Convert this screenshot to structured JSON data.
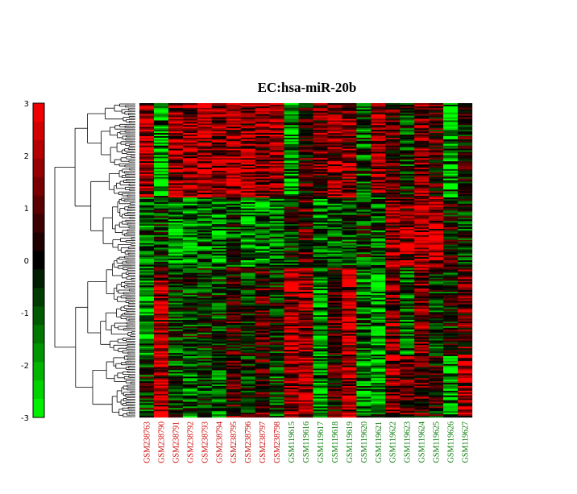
{
  "chart_data": {
    "type": "heatmap",
    "title": "EC:hsa-miR-20b",
    "colorbar": {
      "ticks": [
        "3",
        "2",
        "1",
        "0",
        "-1",
        "-2",
        "-3"
      ],
      "range": [
        -3,
        3
      ],
      "colors": {
        "high": "#ff0000",
        "mid": "#000000",
        "low": "#00ff00"
      }
    },
    "columns": [
      {
        "label": "GSM238763",
        "group_color": "#cc0000"
      },
      {
        "label": "GSM238790",
        "group_color": "#cc0000"
      },
      {
        "label": "GSM238791",
        "group_color": "#cc0000"
      },
      {
        "label": "GSM238792",
        "group_color": "#cc0000"
      },
      {
        "label": "GSM238793",
        "group_color": "#cc0000"
      },
      {
        "label": "GSM238794",
        "group_color": "#cc0000"
      },
      {
        "label": "GSM238795",
        "group_color": "#cc0000"
      },
      {
        "label": "GSM238796",
        "group_color": "#cc0000"
      },
      {
        "label": "GSM238797",
        "group_color": "#cc0000"
      },
      {
        "label": "GSM238798",
        "group_color": "#cc0000"
      },
      {
        "label": "GSM119615",
        "group_color": "#007700"
      },
      {
        "label": "GSM119616",
        "group_color": "#007700"
      },
      {
        "label": "GSM119617",
        "group_color": "#007700"
      },
      {
        "label": "GSM119618",
        "group_color": "#007700"
      },
      {
        "label": "GSM119619",
        "group_color": "#007700"
      },
      {
        "label": "GSM119620",
        "group_color": "#007700"
      },
      {
        "label": "GSM119621",
        "group_color": "#007700"
      },
      {
        "label": "GSM119622",
        "group_color": "#007700"
      },
      {
        "label": "GSM119623",
        "group_color": "#007700"
      },
      {
        "label": "GSM119624",
        "group_color": "#007700"
      },
      {
        "label": "GSM119625",
        "group_color": "#007700"
      },
      {
        "label": "GSM119626",
        "group_color": "#007700"
      },
      {
        "label": "GSM119627",
        "group_color": "#007700"
      }
    ],
    "row_count": 200,
    "row_blocks": [
      {
        "rows": 60,
        "pattern": [
          2.2,
          -2.5,
          1.8,
          2.0,
          2.4,
          1.6,
          2.3,
          2.1,
          1.5,
          1.9,
          -2.0,
          0.5,
          1.2,
          2.0,
          1.6,
          -1.0,
          1.8,
          0.8,
          -0.5,
          1.5,
          0.6,
          -2.4,
          0.3
        ]
      },
      {
        "rows": 45,
        "pattern": [
          -1.4,
          -0.5,
          -1.8,
          -1.6,
          -1.2,
          -1.5,
          -0.6,
          -1.8,
          -1.7,
          -1.0,
          -0.2,
          1.0,
          -1.4,
          -1.0,
          -0.8,
          -0.5,
          -1.0,
          2.0,
          2.2,
          2.3,
          2.6,
          0.2,
          -0.6
        ]
      },
      {
        "rows": 55,
        "pattern": [
          -1.5,
          2.6,
          -0.8,
          -0.5,
          -0.3,
          -0.6,
          0.5,
          -0.4,
          0.8,
          -0.2,
          2.4,
          2.2,
          -1.6,
          0.8,
          2.8,
          -1.2,
          -2.2,
          1.4,
          -1.2,
          1.5,
          -0.5,
          -0.3,
          1.0
        ]
      },
      {
        "rows": 40,
        "pattern": [
          -0.4,
          2.6,
          -0.8,
          -1.2,
          -0.5,
          -1.0,
          0.8,
          -0.3,
          1.0,
          -0.8,
          1.8,
          2.0,
          -1.6,
          0.5,
          2.8,
          -1.5,
          -2.0,
          1.6,
          1.2,
          1.0,
          0.2,
          -1.8,
          2.0
        ]
      }
    ]
  }
}
